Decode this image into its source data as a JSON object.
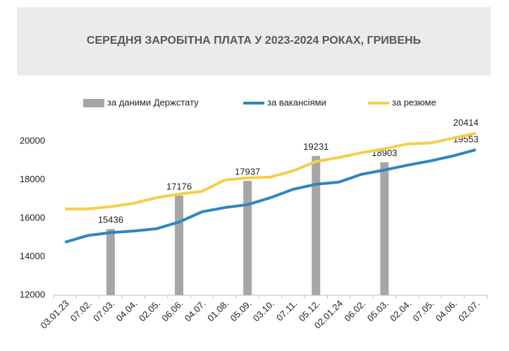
{
  "chart_data": {
    "type": "bar-line",
    "title": "СЕРЕДНЯ ЗАРОБІТНА ПЛАТА У 2023-2024 РОКАХ, ГРИВЕНЬ",
    "categories": [
      "03.01.23",
      "07.02.",
      "07.03.",
      "04.04.",
      "02.05.",
      "06.06.",
      "04.07.",
      "01.08.",
      "05.09.",
      "03.10.",
      "07.11.",
      "05.12.",
      "02.01.24",
      "06.02.",
      "05.03.",
      "02.04.",
      "07.05.",
      "04.06.",
      "02.07."
    ],
    "series": [
      {
        "name": "за даними Держстату",
        "type": "bar",
        "color": "#a6a6a6",
        "values": [
          null,
          null,
          15436,
          null,
          null,
          17176,
          null,
          null,
          17937,
          null,
          null,
          19231,
          null,
          null,
          18903,
          null,
          null,
          null,
          null
        ]
      },
      {
        "name": "за вакансіями",
        "type": "line",
        "color": "#2e86c1",
        "values": [
          14750,
          15100,
          15250,
          15330,
          15450,
          15800,
          16330,
          16550,
          16700,
          17060,
          17500,
          17760,
          17870,
          18280,
          18500,
          18750,
          18970,
          19230,
          19553
        ]
      },
      {
        "name": "за резюме",
        "type": "line",
        "color": "#f5cf4a",
        "values": [
          16480,
          16480,
          16600,
          16770,
          17060,
          17250,
          17390,
          17980,
          18090,
          18130,
          18460,
          18940,
          19150,
          19400,
          19600,
          19850,
          19900,
          20150,
          20414
        ]
      }
    ],
    "ylim": [
      12000,
      20800
    ],
    "yticks": [
      12000,
      14000,
      16000,
      18000,
      20000
    ],
    "grid": false
  }
}
